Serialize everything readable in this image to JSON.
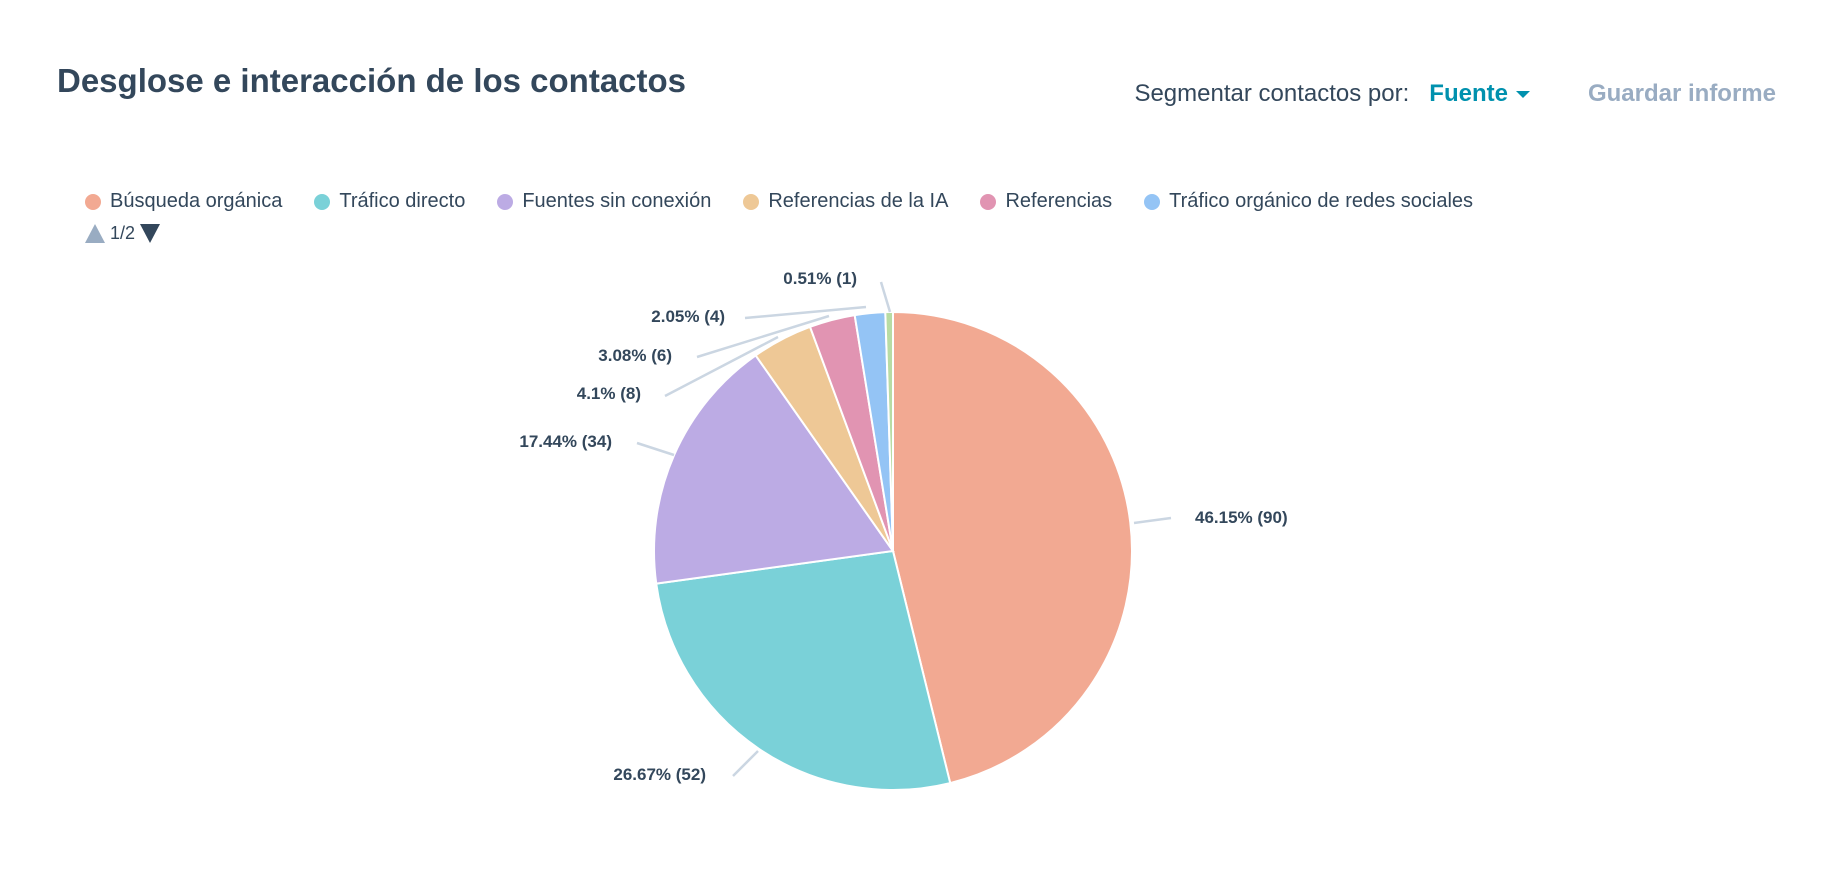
{
  "header": {
    "title": "Desglose e interacción de los contactos",
    "segment_label": "Segmentar contactos por:",
    "segment_value": "Fuente",
    "save_label": "Guardar informe"
  },
  "legend_pager": {
    "text": "1/2"
  },
  "chart_data": {
    "type": "pie",
    "title": "Desglose e interacción de los contactos",
    "legend_position": "top-left",
    "slices": [
      {
        "name": "Búsqueda orgánica",
        "value": 90,
        "percent": 46.15,
        "label": "46.15% (90)",
        "color": "#f2a992"
      },
      {
        "name": "Tráfico directo",
        "value": 52,
        "percent": 26.67,
        "label": "26.67% (52)",
        "color": "#7ad1d8"
      },
      {
        "name": "Fuentes sin conexión",
        "value": 34,
        "percent": 17.44,
        "label": "17.44% (34)",
        "color": "#bcabe4"
      },
      {
        "name": "Referencias de la IA",
        "value": 8,
        "percent": 4.1,
        "label": "4.1% (8)",
        "color": "#eec896"
      },
      {
        "name": "Referencias",
        "value": 6,
        "percent": 3.08,
        "label": "3.08% (6)",
        "color": "#e194b2"
      },
      {
        "name": "Tráfico orgánico de redes sociales",
        "value": 4,
        "percent": 2.05,
        "label": "2.05% (4)",
        "color": "#94c4f5"
      },
      {
        "name": "",
        "value": 1,
        "percent": 0.51,
        "label": "0.51% (1)",
        "color": "#b8dca4"
      }
    ]
  }
}
